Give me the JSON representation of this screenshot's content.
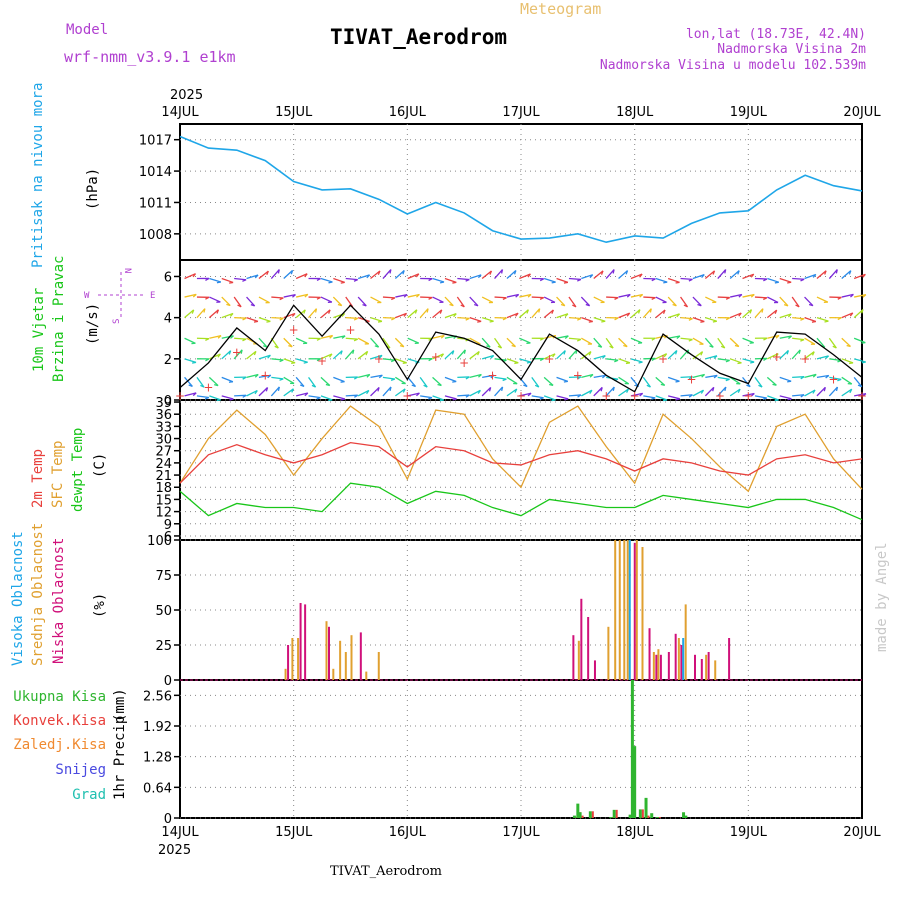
{
  "header": {
    "model_label": "Model",
    "model_name": "wrf-nmm_v3.9.1 e1km",
    "meteogram_label": "Meteogram",
    "station_title": "TIVAT_Aerodrom",
    "lonlat": "lon,lat (18.73E, 42.4N)",
    "altitude": "Nadmorska Visina 2m",
    "model_altitude": "Nadmorska Visina u modelu 102.539m",
    "footer_station": "TIVAT_Aerodrom",
    "credit": "made by Angel"
  },
  "time_axis": {
    "year": "2025",
    "days": [
      "14JUL",
      "15JUL",
      "16JUL",
      "17JUL",
      "18JUL",
      "19JUL",
      "20JUL"
    ]
  },
  "colors": {
    "pressure": "#1fa6e8",
    "t2m": "#e8403c",
    "sfc": "#e0a030",
    "dewpt": "#19c619",
    "cloud_high": "#1fa6e8",
    "cloud_mid": "#e0a030",
    "cloud_low": "#d0107a",
    "precip_total": "#2fb52f",
    "precip_conv": "#e8403c",
    "precip_frozen": "#f08a30",
    "precip_snow": "#4a4ae0",
    "precip_graupel": "#20c0b0",
    "wind_label": "#19c619",
    "compass": "#b040d0"
  },
  "panels": {
    "pressure": {
      "ylabel": "Pritisak na nivou mora",
      "unit": "(hPa)",
      "yticks": [
        "1017",
        "1014",
        "1011",
        "1008"
      ]
    },
    "wind": {
      "ylabel1": "10m Vjetar",
      "ylabel2": "Brzina i Pravac",
      "unit": "(m/s)",
      "yticks": [
        "6",
        "4",
        "2",
        "0"
      ],
      "compass": {
        "n": "N",
        "s": "S",
        "e": "E",
        "w": "W"
      }
    },
    "temp": {
      "ylabel1": "2m Temp",
      "ylabel2": "SFC Temp",
      "ylabel3": "dewpt Temp",
      "unit": "(C)",
      "yticks": [
        "39",
        "36",
        "33",
        "30",
        "27",
        "24",
        "21",
        "18",
        "15",
        "12",
        "9",
        "6"
      ]
    },
    "cloud": {
      "ylabel1": "Visoka Oblacnost",
      "ylabel2": "Srednja Oblacnost",
      "ylabel3": "Niska Oblacnost",
      "unit": "(%)",
      "yticks": [
        "100",
        "75",
        "50",
        "25",
        "0"
      ]
    },
    "precip": {
      "legend": [
        "Ukupna Kisa",
        "Konvek.Kisa",
        "Zaledj.Kisa",
        "Snijeg",
        "Grad"
      ],
      "ylabel": "1hr Precip",
      "unit": "(mm)",
      "yticks": [
        "2.56",
        "1.92",
        "1.28",
        "0.64",
        "0"
      ]
    }
  },
  "chart_data": [
    {
      "type": "line",
      "title": "Pritisak na nivou mora",
      "ylabel": "(hPa)",
      "ylim": [
        1005.5,
        1018.5
      ],
      "x": [
        0,
        0.25,
        0.5,
        0.75,
        1,
        1.25,
        1.5,
        1.75,
        2,
        2.25,
        2.5,
        2.75,
        3,
        3.25,
        3.5,
        3.75,
        4,
        4.25,
        4.5,
        4.75,
        5,
        5.25,
        5.5,
        5.75,
        6
      ],
      "series": [
        {
          "values": [
            1017.3,
            1016.2,
            1016.0,
            1015.0,
            1013.0,
            1012.2,
            1012.3,
            1011.3,
            1009.9,
            1011.0,
            1010.0,
            1008.3,
            1007.5,
            1007.6,
            1008.0,
            1007.2,
            1007.8,
            1007.6,
            1009.0,
            1010.0,
            1010.2,
            1012.2,
            1013.6,
            1012.6,
            1012.1
          ]
        }
      ],
      "grid": true
    },
    {
      "type": "line",
      "title": "10m Vjetar Brzina i Pravac",
      "ylabel": "(m/s)",
      "ylim": [
        0,
        6.8
      ],
      "x": [
        0,
        0.25,
        0.5,
        0.75,
        1,
        1.25,
        1.5,
        1.75,
        2,
        2.25,
        2.5,
        2.75,
        3,
        3.25,
        3.5,
        3.75,
        4,
        4.25,
        4.5,
        4.75,
        5,
        5.25,
        5.5,
        5.75,
        6
      ],
      "series": [
        {
          "values": [
            0.6,
            1.8,
            3.5,
            2.4,
            4.6,
            3.1,
            4.6,
            3.2,
            1.0,
            3.3,
            3.0,
            2.4,
            1.0,
            3.2,
            2.4,
            1.2,
            0.4,
            3.2,
            2.2,
            1.3,
            0.8,
            3.3,
            3.2,
            2.2,
            1.1
          ]
        }
      ],
      "grid": true
    },
    {
      "type": "line",
      "title": "",
      "ylabel": "(C)",
      "ylim": [
        5,
        39.5
      ],
      "x": [
        0,
        0.25,
        0.5,
        0.75,
        1,
        1.25,
        1.5,
        1.75,
        2,
        2.25,
        2.5,
        2.75,
        3,
        3.25,
        3.5,
        3.75,
        4,
        4.25,
        4.5,
        4.75,
        5,
        5.25,
        5.5,
        5.75,
        6
      ],
      "series": [
        {
          "name": "2m Temp",
          "values": [
            19,
            26,
            28.5,
            26,
            24,
            26,
            29,
            28,
            23,
            28,
            27,
            24,
            23.5,
            26,
            27,
            25,
            22,
            25,
            24,
            22,
            21,
            25,
            26,
            24,
            25
          ]
        },
        {
          "name": "SFC Temp",
          "values": [
            19,
            30,
            37,
            31,
            21,
            30,
            38,
            33,
            20,
            37,
            36,
            25,
            18,
            34,
            38,
            28,
            19,
            36,
            30,
            23,
            17,
            33,
            36,
            25,
            17.5
          ]
        },
        {
          "name": "dewpt Temp",
          "values": [
            17,
            11,
            14,
            13,
            13,
            12,
            19,
            18,
            14,
            17,
            16,
            13,
            11,
            15,
            14,
            13,
            13,
            16,
            15,
            14,
            13,
            15,
            15,
            13,
            10
          ]
        }
      ],
      "grid": true
    },
    {
      "type": "bar",
      "title": "",
      "ylabel": "(%)",
      "ylim": [
        0,
        100
      ],
      "x": [
        0.92,
        0.98,
        1.03,
        1.07,
        1.12,
        1.28,
        1.34,
        1.4,
        1.45,
        1.5,
        1.56,
        1.63,
        1.68,
        1.74,
        3.43,
        3.5,
        3.56,
        3.62,
        3.76,
        3.82,
        3.86,
        3.9,
        3.93,
        3.97,
        4.01,
        4.06,
        4.1,
        4.16,
        4.2,
        4.27,
        4.33,
        4.38,
        4.44,
        4.5,
        4.56,
        4.62,
        4.7,
        4.76,
        4.8
      ],
      "series": [
        {
          "name": "Visoka Oblacnost",
          "values": [
            0,
            0,
            0,
            0,
            0,
            0,
            0,
            0,
            0,
            0,
            0,
            0,
            0,
            0,
            0,
            0,
            0,
            0,
            0,
            0,
            0,
            0,
            0,
            100,
            0,
            0,
            0,
            0,
            0,
            0,
            0,
            0,
            30,
            0,
            0,
            0,
            0,
            0,
            0
          ]
        },
        {
          "name": "Srednja Oblacnost",
          "values": [
            8,
            30,
            30,
            0,
            0,
            42,
            8,
            28,
            20,
            32,
            0,
            6,
            0,
            20,
            0,
            28,
            0,
            0,
            38,
            100,
            100,
            100,
            100,
            0,
            100,
            95,
            0,
            20,
            22,
            0,
            0,
            30,
            54,
            0,
            0,
            18,
            14,
            0,
            0
          ]
        },
        {
          "name": "Niska Oblacnost",
          "values": [
            25,
            0,
            55,
            54,
            0,
            38,
            0,
            0,
            0,
            0,
            34,
            0,
            0,
            0,
            32,
            58,
            45,
            14,
            0,
            0,
            0,
            0,
            0,
            98,
            0,
            0,
            37,
            18,
            18,
            20,
            33,
            25,
            0,
            18,
            15,
            20,
            0,
            0,
            30
          ]
        }
      ],
      "grid": true
    },
    {
      "type": "bar",
      "title": "",
      "ylabel": "1hr Precip (mm)",
      "ylim": [
        0,
        2.88
      ],
      "x": [
        3.47,
        3.5,
        3.52,
        3.61,
        3.79,
        3.82,
        3.96,
        3.98,
        4.0,
        4.05,
        4.1,
        4.15,
        4.2,
        4.43,
        4.45
      ],
      "series": [
        {
          "name": "Ukupna Kisa",
          "values": [
            0.05,
            0.3,
            0.12,
            0.14,
            0.02,
            0.17,
            0.07,
            2.95,
            1.5,
            0.18,
            0.42,
            0.1,
            0.02,
            0.12,
            0.05
          ]
        },
        {
          "name": "Konvek.Kisa",
          "values": [
            0.02,
            0.12,
            0.05,
            0.14,
            0.02,
            0.17,
            0.07,
            0.0,
            0.0,
            0.18,
            0.05,
            0.0,
            0.02,
            0.02,
            0.0
          ]
        },
        {
          "name": "Zaledj.Kisa",
          "values": [
            0,
            0,
            0,
            0,
            0,
            0,
            0,
            0,
            0,
            0,
            0,
            0,
            0,
            0,
            0
          ]
        },
        {
          "name": "Snijeg",
          "values": [
            0,
            0,
            0,
            0,
            0,
            0,
            0,
            0,
            0,
            0,
            0,
            0,
            0,
            0,
            0
          ]
        },
        {
          "name": "Grad",
          "values": [
            0,
            0,
            0,
            0,
            0,
            0,
            0,
            0,
            0,
            0,
            0,
            0,
            0,
            0,
            0
          ]
        }
      ],
      "grid": true
    }
  ]
}
